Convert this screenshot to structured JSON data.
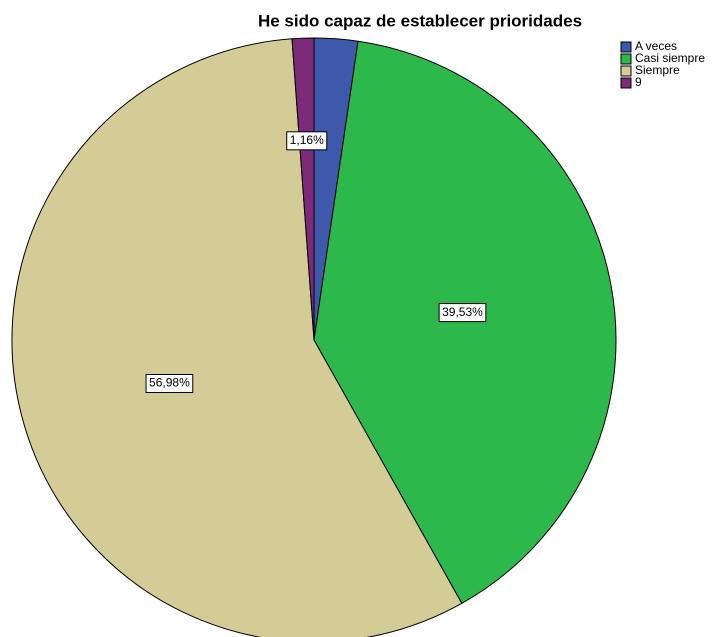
{
  "chart_data": {
    "type": "pie",
    "title": "He sido capaz de establecer prioridades",
    "categories": [
      "A veces",
      "Casi siempre",
      "Siempre",
      "9"
    ],
    "values": [
      2.33,
      39.53,
      56.98,
      1.16
    ],
    "value_labels": [
      null,
      "39,53%",
      "56,98%",
      "1,16%"
    ],
    "colors": [
      "#3e58ac",
      "#2db84b",
      "#d4cc97",
      "#7d2a79"
    ],
    "legend": "top-right"
  }
}
